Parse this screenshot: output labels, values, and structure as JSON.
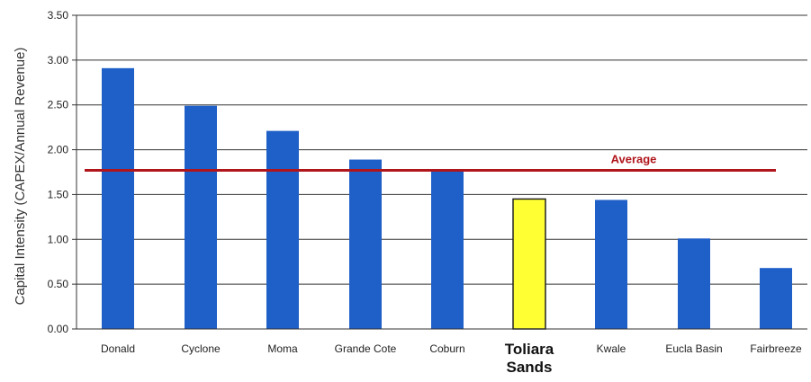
{
  "chart_data": {
    "type": "bar",
    "title": "",
    "xlabel": "",
    "ylabel": "Capital Intensity (CAPEX/Annual Revenue)",
    "ylim": [
      0,
      3.5
    ],
    "yticks": [
      "0.00",
      "0.50",
      "1.00",
      "1.50",
      "2.00",
      "2.50",
      "3.00",
      "3.50"
    ],
    "grid": true,
    "categories": [
      "Donald",
      "Cyclone",
      "Moma",
      "Grande Cote",
      "Coburn",
      "Toliara Sands",
      "Kwale",
      "Eucla Basin",
      "Fairbreeze"
    ],
    "values": [
      2.91,
      2.49,
      2.21,
      1.89,
      1.78,
      1.45,
      1.44,
      1.01,
      0.68
    ],
    "highlight": "Toliara Sands",
    "bar_color": "#1f5fc8",
    "highlight_color": "#ffff33",
    "reference_line": {
      "label": "Average",
      "value": 1.77,
      "color": "#b0151b"
    }
  }
}
